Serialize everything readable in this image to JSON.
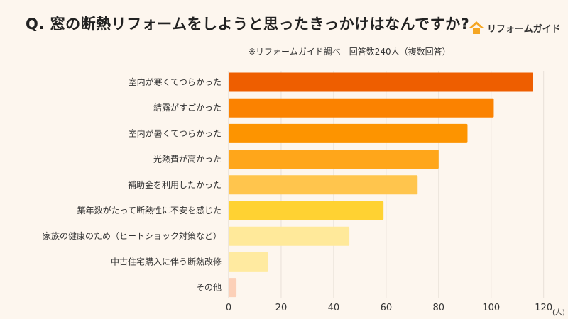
{
  "header": {
    "title": "Q. 窓の断熱リフォームをしようと思ったきっかけはなんですか?",
    "logo_text": "リフォームガイド",
    "note": "※リフォームガイド調べ　回答数240人（複数回答）"
  },
  "chart_data": {
    "type": "bar",
    "orientation": "horizontal",
    "title": "Q. 窓の断熱リフォームをしようと思ったきっかけはなんですか?",
    "categories": [
      "室内が寒くてつらかった",
      "結露がすごかった",
      "室内が暑くてつらかった",
      "光熱費が高かった",
      "補助金を利用したかった",
      "築年数がたって断熱性に不安を感じた",
      "家族の健康のため（ヒートショック対策など）",
      "中古住宅購入に伴う断熱改修",
      "その他"
    ],
    "values": [
      116,
      101,
      91,
      80,
      72,
      59,
      46,
      15,
      3
    ],
    "colors": [
      "#ee5e00",
      "#fb8200",
      "#fd9400",
      "#ffa61a",
      "#ffc54d",
      "#ffd232",
      "#ffe99a",
      "#ffeaa0",
      "#fcd0b8"
    ],
    "xlim": [
      0,
      120
    ],
    "xticks": [
      "0",
      "20",
      "40",
      "60",
      "80",
      "100",
      "120"
    ],
    "xunit": "(人)",
    "grid": true
  }
}
